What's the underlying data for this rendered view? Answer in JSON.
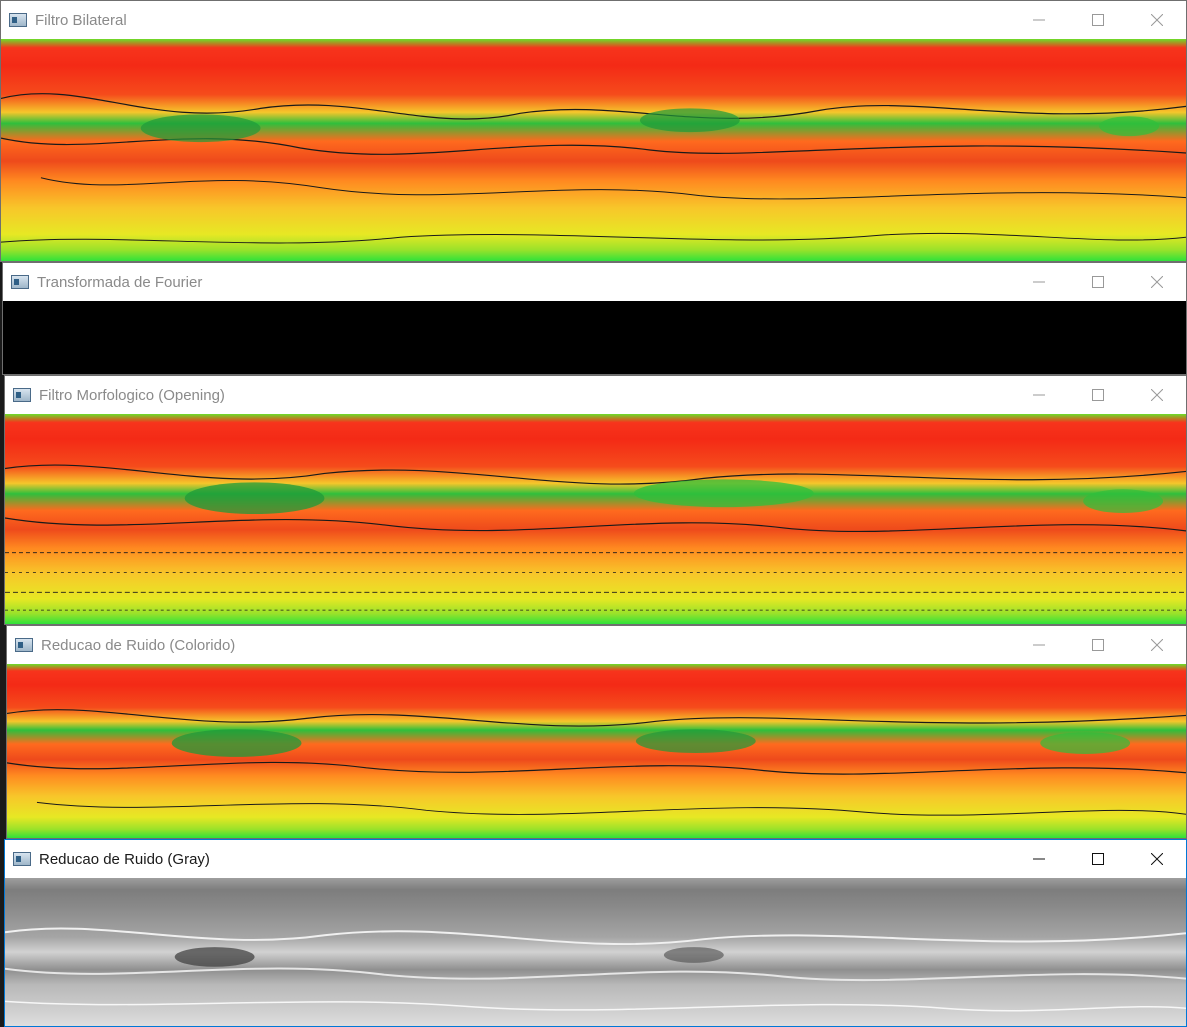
{
  "windows": [
    {
      "title": "Filtro Bilateral"
    },
    {
      "title": "Transformada de Fourier"
    },
    {
      "title": "Filtro Morfologico (Opening)"
    },
    {
      "title": "Reducao de Ruido (Colorido)"
    },
    {
      "title": "Reducao de Ruido (Gray)"
    }
  ],
  "icons": {
    "app": "opencv-window-icon",
    "minimize": "minimize-icon",
    "maximize": "maximize-icon",
    "close": "close-icon"
  },
  "colors": {
    "thermal_hot": "#f42a16",
    "thermal_warm": "#f8c62a",
    "thermal_cool": "#2fbf3c",
    "gray_mid": "#a5a5a5"
  }
}
